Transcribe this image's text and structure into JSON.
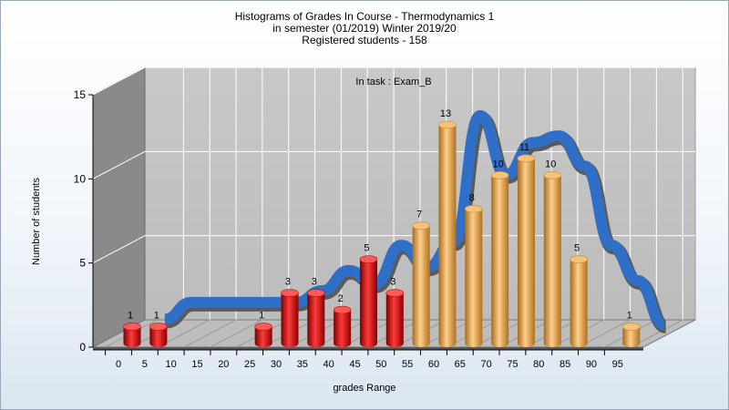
{
  "chart_data": {
    "type": "bar",
    "title_lines": [
      "Histograms of Grades  In Course - Thermodynamics 1",
      "in semester  (01/2019) Winter 2019/20",
      "Registered students - 158"
    ],
    "annotation": "In task : Exam_B",
    "xlabel": "grades Range",
    "ylabel": "Number of students",
    "ylim": [
      0,
      15
    ],
    "yticks": [
      0,
      5,
      10,
      15
    ],
    "categories": [
      "0",
      "5",
      "10",
      "15",
      "20",
      "25",
      "30",
      "35",
      "40",
      "45",
      "50",
      "55",
      "60",
      "65",
      "70",
      "75",
      "80",
      "85",
      "90",
      "95"
    ],
    "values": [
      1,
      1,
      0,
      0,
      0,
      1,
      3,
      3,
      2,
      5,
      3,
      7,
      13,
      8,
      10,
      11,
      10,
      5,
      0,
      1
    ],
    "pass_threshold": 55,
    "colors": {
      "fail_bar": "#e01818",
      "pass_bar": "#e8a23c",
      "curve": "#2f6fc8",
      "curve_shadow": "#5a5a5a",
      "wall": "#c4c4c4",
      "side_wall": "#8a8a8a"
    },
    "trend_curve": [
      {
        "x": 5,
        "y": 0.9
      },
      {
        "x": 10,
        "y": 1.9
      },
      {
        "x": 15,
        "y": 1.9
      },
      {
        "x": 20,
        "y": 1.9
      },
      {
        "x": 25,
        "y": 1.9
      },
      {
        "x": 30,
        "y": 1.9
      },
      {
        "x": 35,
        "y": 2.6
      },
      {
        "x": 40,
        "y": 3.8
      },
      {
        "x": 45,
        "y": 3.0
      },
      {
        "x": 50,
        "y": 5.3
      },
      {
        "x": 55,
        "y": 4.0
      },
      {
        "x": 60,
        "y": 5.5
      },
      {
        "x": 65,
        "y": 13.0
      },
      {
        "x": 70,
        "y": 9.5
      },
      {
        "x": 75,
        "y": 11.4
      },
      {
        "x": 80,
        "y": 11.8
      },
      {
        "x": 85,
        "y": 10.0
      },
      {
        "x": 90,
        "y": 5.3
      },
      {
        "x": 95,
        "y": 3.2
      },
      {
        "x": 100,
        "y": 0.6
      }
    ]
  }
}
